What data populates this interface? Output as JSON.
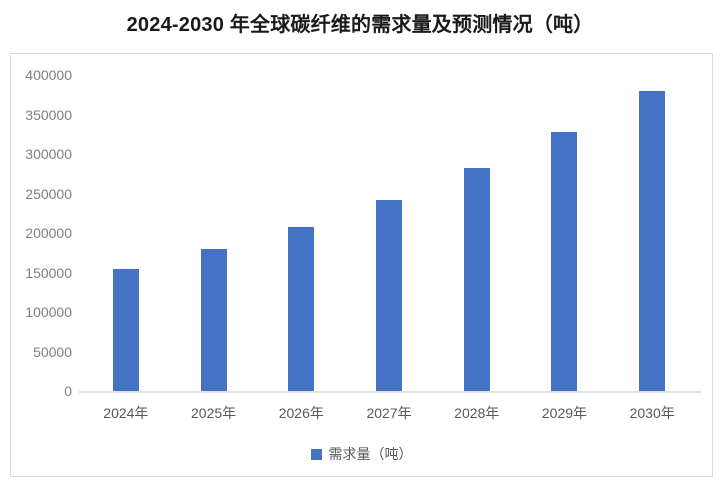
{
  "chart_data": {
    "type": "bar",
    "title": "2024-2030 年全球碳纤维的需求量及预测情况（吨）",
    "categories": [
      "2024年",
      "2025年",
      "2026年",
      "2027年",
      "2028年",
      "2029年",
      "2030年"
    ],
    "series": [
      {
        "name": "需求量（吨）",
        "values": [
          155000,
          180000,
          208000,
          242000,
          282000,
          328000,
          380000
        ]
      }
    ],
    "xlabel": "",
    "ylabel": "",
    "ylim": [
      0,
      400000
    ],
    "y_ticks": [
      "400000",
      "350000",
      "300000",
      "250000",
      "200000",
      "150000",
      "100000",
      "50000",
      "0"
    ],
    "grid": false,
    "legend": {
      "label": "需求量（吨）",
      "position": "bottom"
    },
    "colors": {
      "bar": "#4472C4",
      "axis_line": "#D9D9D9",
      "y_tick_label": "#808080",
      "x_tick_label": "#595959",
      "title": "#1A1A1A",
      "chart_border": "#D9D9D9"
    }
  }
}
